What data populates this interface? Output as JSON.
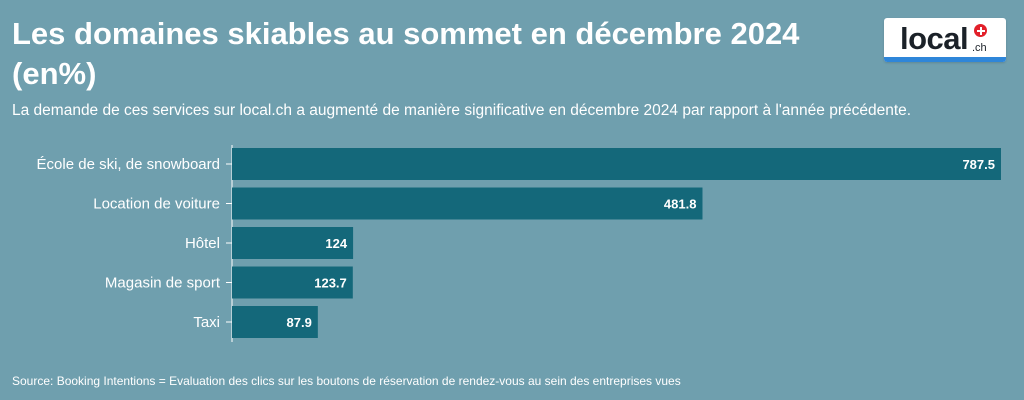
{
  "header": {
    "title": "Les domaines skiables au sommet en décembre 2024 (en%)",
    "subtitle": "La demande de ces services sur local.ch a augmenté de manière significative en décembre 2024 par rapport à l'année précédente."
  },
  "logo": {
    "text": "local",
    "suffix": ".ch",
    "icon": "swiss-cross-icon"
  },
  "footer": {
    "source": "Source: Booking Intentions = Evaluation des clics sur les boutons de réservation de rendez-vous au sein des entreprises vues"
  },
  "colors": {
    "background": "#6f9fae",
    "bar": "#14687a",
    "text": "#ffffff"
  },
  "chart_data": {
    "type": "bar",
    "orientation": "horizontal",
    "title": "Les domaines skiables au sommet en décembre 2024 (en%)",
    "categories": [
      "École de ski, de snowboard",
      "Location de voiture",
      "Hôtel",
      "Magasin de sport",
      "Taxi"
    ],
    "values": [
      787.5,
      481.8,
      124,
      123.7,
      87.9
    ],
    "value_labels": [
      "787.5",
      "481.8",
      "124",
      "123.7",
      "87.9"
    ],
    "xlim": [
      0,
      787.5
    ],
    "grid": false,
    "legend": "none"
  }
}
